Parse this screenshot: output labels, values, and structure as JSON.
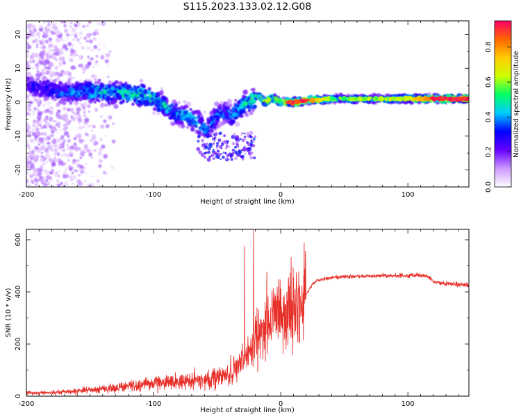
{
  "title": "S115.2023.133.02.12.G08",
  "chart_data": [
    {
      "type": "heatmap",
      "xlabel": "Height of straight line (km)",
      "ylabel": "Frequency (Hz)",
      "xlim": [
        -200,
        148
      ],
      "ylim": [
        -25,
        24
      ],
      "xticks": [
        -200,
        -100,
        0,
        100
      ],
      "xtick_labels": [
        "-200",
        "-100",
        "0",
        "100"
      ],
      "yticks": [
        -20,
        -10,
        0,
        10,
        20
      ],
      "ytick_labels": [
        "-20",
        "-10",
        "0",
        "10",
        "20"
      ],
      "colorbar": {
        "label": "Normalized spectral amplitude",
        "range": [
          0,
          0.95
        ],
        "ticks": [
          0.0,
          0.2,
          0.4,
          0.6,
          0.8
        ],
        "tick_labels": [
          "0.0",
          "0.2",
          "0.4",
          "0.6",
          "0.8"
        ],
        "colors": [
          "#ffffff",
          "#cc99ff",
          "#6600ff",
          "#0000ff",
          "#00ccff",
          "#00ff66",
          "#ccff00",
          "#ffcc00",
          "#ff6600",
          "#ff0066"
        ]
      },
      "ridge": {
        "x": [
          -200,
          -185,
          -170,
          -155,
          -140,
          -120,
          -105,
          -95,
          -85,
          -75,
          -65,
          -58,
          -50,
          -45,
          -38,
          -30,
          -25,
          -18,
          -12,
          -8,
          -5,
          0,
          10,
          20,
          40,
          60,
          80,
          100,
          120,
          148
        ],
        "y": [
          5,
          4,
          3,
          3,
          3,
          2.5,
          2,
          0,
          -3,
          -4,
          -6,
          -8,
          -4,
          -3,
          -4,
          -1,
          0,
          2,
          0,
          1,
          1,
          0,
          0,
          0.5,
          1,
          1,
          1,
          1,
          1,
          1
        ],
        "amplitude": [
          0.3,
          0.35,
          0.4,
          0.45,
          0.5,
          0.55,
          0.55,
          0.5,
          0.45,
          0.45,
          0.45,
          0.45,
          0.4,
          0.4,
          0.45,
          0.5,
          0.55,
          0.6,
          0.7,
          0.7,
          0.7,
          0.8,
          0.85,
          0.85,
          0.5,
          0.55,
          0.55,
          0.6,
          0.85,
          0.85
        ]
      }
    },
    {
      "type": "line",
      "xlabel": "Height of straight line (km)",
      "ylabel": "SNR (10 * v/v)",
      "xlim": [
        -200,
        148
      ],
      "ylim": [
        0,
        640
      ],
      "xticks": [
        -200,
        -100,
        0,
        100
      ],
      "xtick_labels": [
        "-200",
        "-100",
        "0",
        "100"
      ],
      "yticks": [
        0,
        200,
        400,
        600
      ],
      "ytick_labels": [
        "0",
        "200",
        "400",
        "600"
      ],
      "color": "#e8302a",
      "series": [
        {
          "name": "SNR",
          "x": [
            -200,
            -180,
            -160,
            -150,
            -140,
            -130,
            -120,
            -110,
            -100,
            -90,
            -80,
            -70,
            -60,
            -50,
            -40,
            -35,
            -30,
            -25,
            -20,
            -15,
            -10,
            -5,
            0,
            5,
            10,
            15,
            20,
            25,
            30,
            40,
            50,
            60,
            70,
            80,
            90,
            100,
            110,
            115,
            120,
            130,
            140,
            148
          ],
          "y": [
            12,
            14,
            20,
            25,
            28,
            32,
            38,
            45,
            50,
            55,
            55,
            60,
            65,
            70,
            85,
            100,
            130,
            170,
            230,
            260,
            280,
            290,
            300,
            320,
            330,
            340,
            390,
            430,
            445,
            455,
            458,
            460,
            460,
            462,
            462,
            462,
            465,
            462,
            440,
            432,
            428,
            425
          ]
        }
      ]
    }
  ]
}
